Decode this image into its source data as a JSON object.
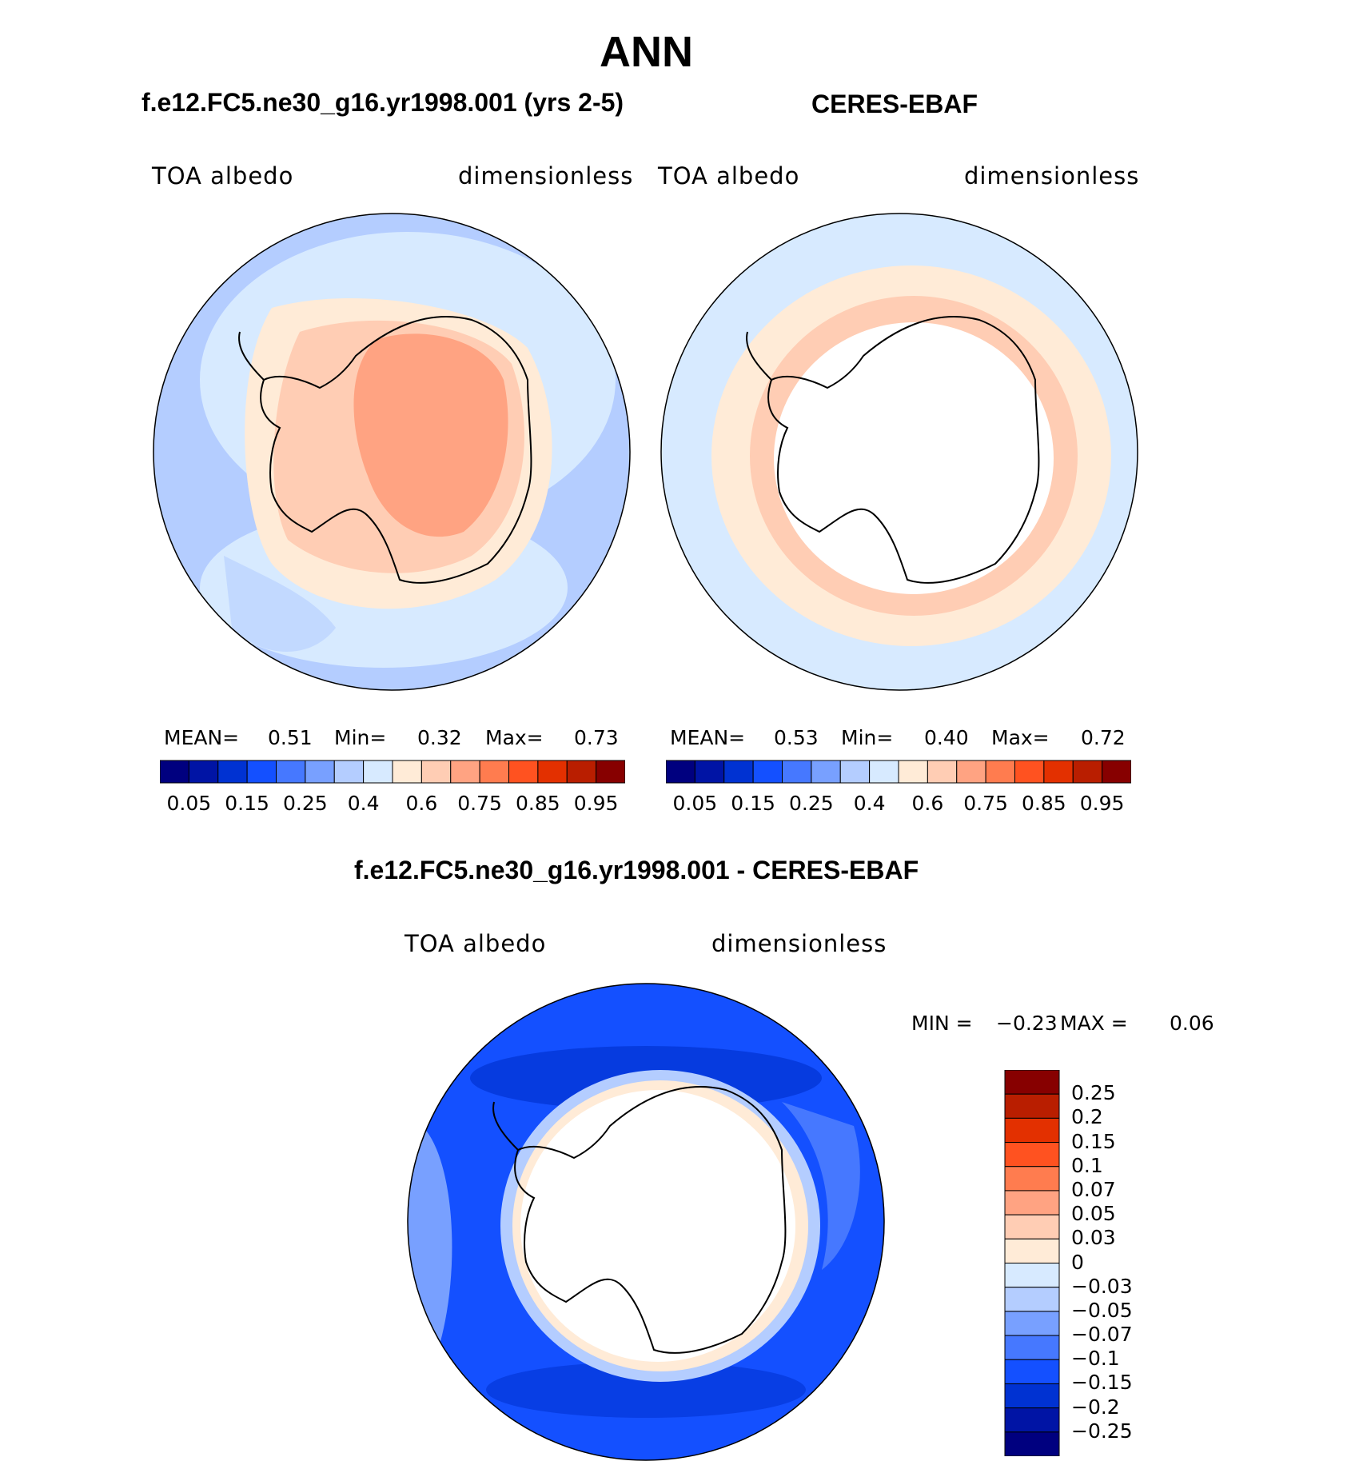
{
  "title": "ANN",
  "panels": [
    {
      "subtitle": "f.e12.FC5.ne30_g16.yr1998.001 (yrs 2-5)",
      "left_label": "TOA albedo",
      "right_label": "dimensionless",
      "stats": {
        "mean_label": "MEAN=",
        "mean": "0.51",
        "min_label": "Min=",
        "min": "0.32",
        "max_label": "Max=",
        "max": "0.73"
      }
    },
    {
      "subtitle": "CERES-EBAF",
      "left_label": "TOA albedo",
      "right_label": "dimensionless",
      "stats": {
        "mean_label": "MEAN=",
        "mean": "0.53",
        "min_label": "Min=",
        "min": "0.40",
        "max_label": "Max=",
        "max": "0.72"
      }
    },
    {
      "subtitle": "f.e12.FC5.ne30_g16.yr1998.001 - CERES-EBAF",
      "left_label": "TOA albedo",
      "right_label": "dimensionless",
      "stats": {
        "min_label": "MIN =",
        "min": "−0.23",
        "max_label": "MAX =",
        "max": "0.06"
      }
    }
  ],
  "colorbar_top": {
    "colors": [
      "#00007f",
      "#0014a5",
      "#0032d2",
      "#1450ff",
      "#4678ff",
      "#78a0ff",
      "#b4cdff",
      "#d7eaff",
      "#ffebd7",
      "#ffcdb4",
      "#ffa382",
      "#ff7c4f",
      "#ff5220",
      "#e33000",
      "#b91e00",
      "#870000"
    ],
    "tick_labels": [
      "0.05",
      "0.15",
      "0.25",
      "0.4",
      "0.6",
      "0.75",
      "0.85",
      "0.95"
    ]
  },
  "colorbar_diff": {
    "colors": [
      "#870000",
      "#b91e00",
      "#e33000",
      "#ff5220",
      "#ff7c4f",
      "#ffa382",
      "#ffcdb4",
      "#ffebd7",
      "#d7eaff",
      "#b4cdff",
      "#78a0ff",
      "#4678ff",
      "#1450ff",
      "#0032d2",
      "#0014a5",
      "#00007f"
    ],
    "tick_labels": [
      "0.25",
      "0.2",
      "0.15",
      "0.1",
      "0.07",
      "0.05",
      "0.03",
      "0",
      "−0.03",
      "−0.05",
      "−0.07",
      "−0.1",
      "−0.15",
      "−0.2",
      "−0.25"
    ]
  }
}
